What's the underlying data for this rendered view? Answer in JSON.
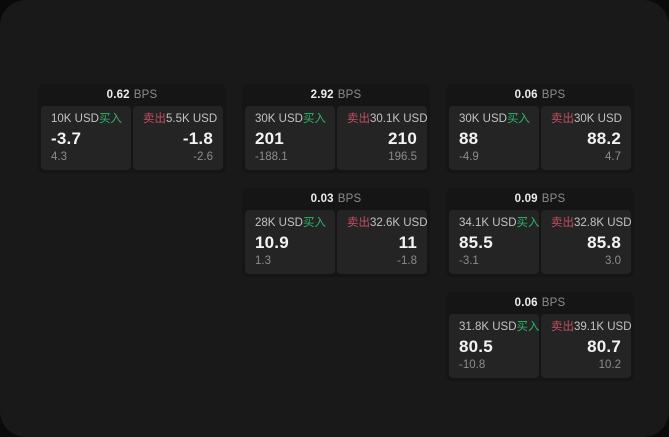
{
  "colors": {
    "page_bg": "#191919",
    "card_bg": "#151515",
    "panel_bg": "#242424",
    "text_primary": "#f3f3f3",
    "text_label": "#c3c3c3",
    "text_muted": "#8c8c8c",
    "buy_green": "#2fb56a",
    "sell_red": "#c24f62"
  },
  "labels": {
    "bps_suffix": "BPS",
    "buy": "买入",
    "sell": "卖出"
  },
  "cards": [
    {
      "bps": "0.62",
      "buy": {
        "amount": "10K USD",
        "value": "-3.7",
        "sub": "4.3"
      },
      "sell": {
        "amount": "5.5K USD",
        "value": "-1.8",
        "sub": "-2.6"
      }
    },
    {
      "bps": "2.92",
      "buy": {
        "amount": "30K USD",
        "value": "201",
        "sub": "-188.1"
      },
      "sell": {
        "amount": "30.1K USD",
        "value": "210",
        "sub": "196.5"
      }
    },
    {
      "bps": "0.06",
      "buy": {
        "amount": "30K USD",
        "value": "88",
        "sub": "-4.9"
      },
      "sell": {
        "amount": "30K USD",
        "value": "88.2",
        "sub": "4.7"
      }
    },
    {
      "bps": "0.03",
      "buy": {
        "amount": "28K USD",
        "value": "10.9",
        "sub": "1.3"
      },
      "sell": {
        "amount": "32.6K USD",
        "value": "11",
        "sub": "-1.8"
      }
    },
    {
      "bps": "0.09",
      "buy": {
        "amount": "34.1K USD",
        "value": "85.5",
        "sub": "-3.1"
      },
      "sell": {
        "amount": "32.8K USD",
        "value": "85.8",
        "sub": "3.0"
      }
    },
    {
      "bps": "0.06",
      "buy": {
        "amount": "31.8K USD",
        "value": "80.5",
        "sub": "-10.8"
      },
      "sell": {
        "amount": "39.1K USD",
        "value": "80.7",
        "sub": "10.2"
      }
    }
  ]
}
